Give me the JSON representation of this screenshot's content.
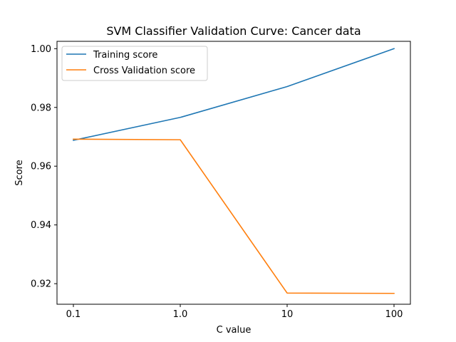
{
  "chart_data": {
    "type": "line",
    "title": "SVM Classifier Validation Curve: Cancer data",
    "xlabel": "C value",
    "ylabel": "Score",
    "categories": [
      "0.1",
      "1.0",
      "10",
      "100"
    ],
    "ylim": [
      0.913,
      1.0025
    ],
    "yticks": [
      "0.92",
      "0.94",
      "0.96",
      "0.98",
      "1.00"
    ],
    "ytick_values": [
      0.92,
      0.94,
      0.96,
      0.98,
      1.0
    ],
    "grid": false,
    "legend_position": "top-left",
    "series": [
      {
        "name": "Training score",
        "color": "#1f77b4",
        "values": [
          0.9688,
          0.9766,
          0.9871,
          1.0
        ]
      },
      {
        "name": "Cross Validation score",
        "color": "#ff7f0e",
        "values": [
          0.9692,
          0.969,
          0.9168,
          0.9167
        ]
      }
    ]
  }
}
